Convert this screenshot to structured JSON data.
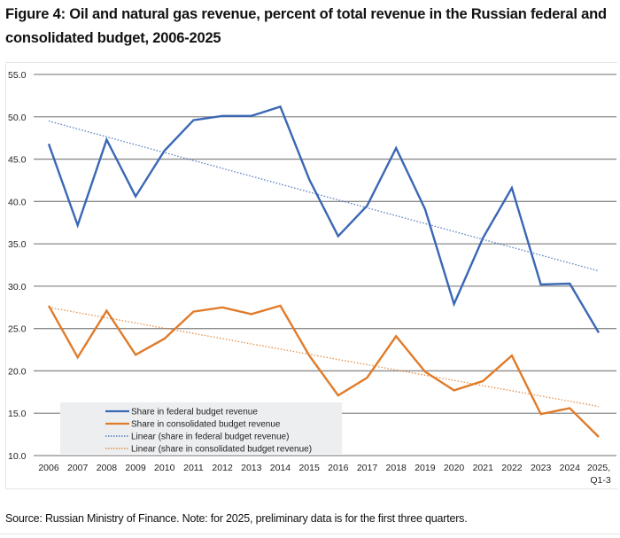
{
  "header": {
    "title": "Figure 4: Oil and natural gas revenue, percent of total revenue in the Russian federal and consolidated budget, 2006-2025"
  },
  "footer": {
    "source": "Source: Russian Ministry of Finance. Note: for 2025, preliminary data is for the first three quarters."
  },
  "colors": {
    "federal": "#3a67b5",
    "consolidated": "#e07b2a",
    "grid": "#8c8c8c",
    "legend_bg": "#eceef0"
  },
  "chart_data": {
    "type": "line",
    "title": "Figure 4: Oil and natural gas revenue, percent of total revenue in the Russian federal and consolidated budget, 2006-2025",
    "xlabel": "",
    "ylabel": "",
    "ylim": [
      10.0,
      55.0
    ],
    "y_ticks": [
      "10.0",
      "15.0",
      "20.0",
      "25.0",
      "30.0",
      "35.0",
      "40.0",
      "45.0",
      "50.0",
      "55.0"
    ],
    "grid": true,
    "legend_position": "bottom-left",
    "categories": [
      "2006",
      "2007",
      "2008",
      "2009",
      "2010",
      "2011",
      "2012",
      "2013",
      "2014",
      "2015",
      "2016",
      "2017",
      "2018",
      "2019",
      "2020",
      "2021",
      "2022",
      "2023",
      "2024",
      "2025,|Q1-3"
    ],
    "series": [
      {
        "name": "Share in federal budget revenue",
        "style": "solid",
        "color": "#3a67b5",
        "values": [
          46.8,
          37.2,
          47.3,
          40.6,
          46.0,
          49.6,
          50.1,
          50.1,
          51.2,
          42.6,
          35.9,
          39.5,
          46.3,
          39.1,
          27.9,
          35.7,
          41.6,
          30.2,
          30.3,
          24.5
        ]
      },
      {
        "name": "Share in consolidated budget revenue",
        "style": "solid",
        "color": "#e07b2a",
        "values": [
          27.7,
          21.6,
          27.1,
          21.9,
          23.8,
          27.0,
          27.5,
          26.7,
          27.7,
          21.8,
          17.1,
          19.2,
          24.1,
          19.9,
          17.7,
          18.8,
          21.8,
          14.9,
          15.6,
          12.2
        ]
      },
      {
        "name": "Linear (share in federal budget revenue)",
        "style": "dotted",
        "color": "#3a67b5",
        "trend": [
          49.5,
          31.8
        ]
      },
      {
        "name": "Linear (share in consolidated budget revenue)",
        "style": "dotted",
        "color": "#e07b2a",
        "trend": [
          27.5,
          15.8
        ]
      }
    ]
  }
}
